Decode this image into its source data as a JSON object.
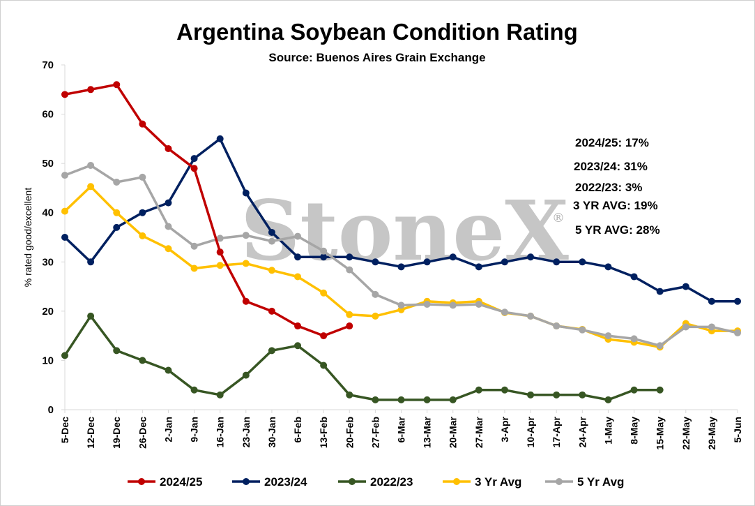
{
  "chart_data": {
    "type": "line",
    "title": "Argentina Soybean Condition Rating",
    "subtitle": "Source: Buenos Aires Grain Exchange",
    "ylabel": "% rated good/excellent",
    "xlabel": "",
    "ylim": [
      0,
      70
    ],
    "yticks": [
      0,
      10,
      20,
      30,
      40,
      50,
      60,
      70
    ],
    "grid": false,
    "legend_position": "bottom",
    "categories": [
      "5-Dec",
      "12-Dec",
      "19-Dec",
      "26-Dec",
      "2-Jan",
      "9-Jan",
      "16-Jan",
      "23-Jan",
      "30-Jan",
      "6-Feb",
      "13-Feb",
      "20-Feb",
      "27-Feb",
      "6-Mar",
      "13-Mar",
      "20-Mar",
      "27-Mar",
      "3-Apr",
      "10-Apr",
      "17-Apr",
      "24-Apr",
      "1-May",
      "8-May",
      "15-May",
      "22-May",
      "29-May",
      "5-Jun"
    ],
    "series": [
      {
        "name": "2023/24",
        "color": "#002060",
        "values": [
          35,
          30,
          37,
          40,
          42,
          51,
          55,
          44,
          36,
          31,
          31,
          31,
          30,
          29,
          30,
          31,
          29,
          30,
          31,
          30,
          30,
          29,
          27,
          24,
          25,
          22,
          22
        ]
      },
      {
        "name": "2022/23",
        "color": "#375623",
        "values": [
          11,
          19,
          12,
          10,
          8,
          4,
          3,
          7,
          12,
          13,
          9,
          3,
          2,
          2,
          2,
          2,
          4,
          4,
          3,
          3,
          3,
          2,
          4,
          4,
          null,
          null,
          null
        ]
      },
      {
        "name": "3 Yr Avg",
        "color": "#ffc000",
        "values": [
          40.3,
          45.3,
          40,
          35.3,
          32.7,
          28.7,
          29.3,
          29.7,
          28.3,
          27,
          23.7,
          19.3,
          19,
          20.3,
          22,
          21.7,
          22,
          19.7,
          19,
          17,
          16.3,
          14.3,
          13.7,
          12.7,
          17.5,
          16,
          16
        ]
      },
      {
        "name": "5 Yr Avg",
        "color": "#a6a6a6",
        "values": [
          47.6,
          49.6,
          46.2,
          47.2,
          37.2,
          33.2,
          34.8,
          35.4,
          34.2,
          35.2,
          32.2,
          28.4,
          23.4,
          21.2,
          21.4,
          21.2,
          21.4,
          19.8,
          19,
          17,
          16.2,
          15,
          14.4,
          13,
          16.8,
          16.8,
          15.6
        ]
      },
      {
        "name": "2024/25",
        "color": "#c00000",
        "values": [
          64,
          65,
          66,
          58,
          53,
          49,
          32,
          22,
          20,
          17,
          15,
          17,
          null,
          null,
          null,
          null,
          null,
          null,
          null,
          null,
          null,
          null,
          null,
          null,
          null,
          null,
          null
        ]
      }
    ],
    "legend_order": [
      "2024/25",
      "2023/24",
      "2022/23",
      "3 Yr Avg",
      "5 Yr Avg"
    ],
    "annotations": [
      "2024/25: 17%",
      "2023/24: 31%",
      "2022/23:  3%",
      "3 YR AVG: 19%",
      "5 YR AVG: 28%"
    ]
  },
  "watermark": {
    "text": "StoneX",
    "mark": "®"
  },
  "colors": {
    "axis": "#d9d9d9",
    "background": "#ffffff",
    "frame": "#cfcfcf"
  }
}
